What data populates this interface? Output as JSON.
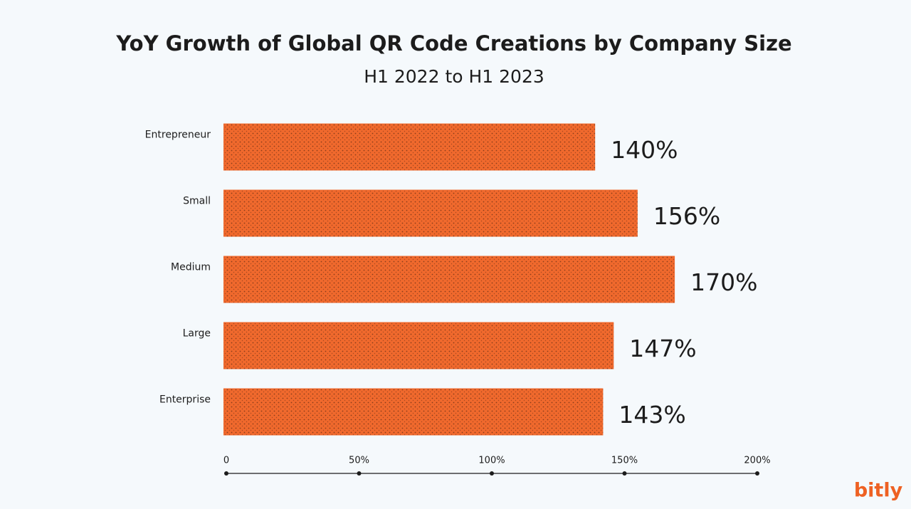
{
  "chart_data": {
    "type": "hbar",
    "title": "YoY Growth of Global QR Code Creations by Company Size",
    "subtitle": "H1 2022 to H1 2023",
    "categories": [
      "Entrepreneur",
      "Small",
      "Medium",
      "Large",
      "Enterprise"
    ],
    "values": [
      140,
      156,
      170,
      147,
      143
    ],
    "value_labels": [
      "140%",
      "156%",
      "170%",
      "147%",
      "143%"
    ],
    "color": "#f0692d",
    "xlim": [
      0,
      200
    ],
    "xticks": [
      0,
      {
        "value": 50,
        "label": "50%"
      },
      {
        "value": 100,
        "label": "100%"
      },
      {
        "value": 150,
        "label": "150%"
      },
      {
        "value": 200,
        "label": "200%"
      }
    ],
    "grid": false
  },
  "logo": "bitly"
}
